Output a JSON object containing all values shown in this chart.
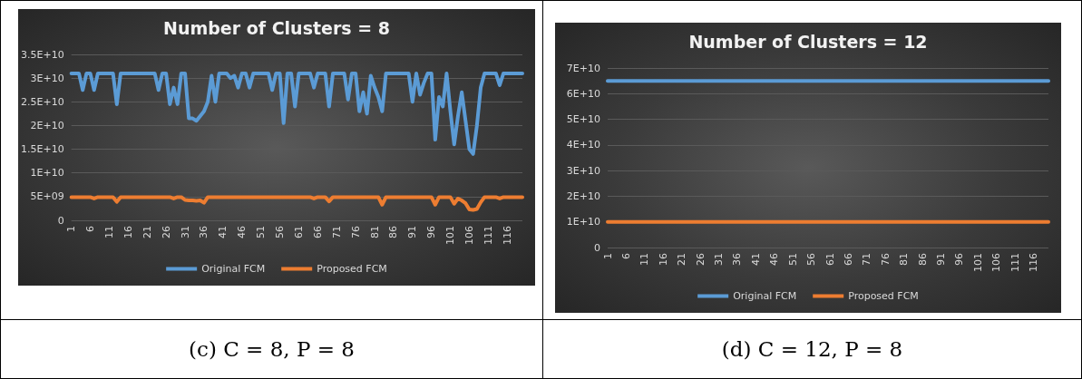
{
  "chart_data": [
    {
      "type": "line",
      "title": "Number of Clusters = 8",
      "categories": [
        "1",
        null,
        null,
        null,
        null,
        "6",
        null,
        null,
        null,
        null,
        "11",
        null,
        null,
        null,
        null,
        "16",
        null,
        null,
        null,
        null,
        "21",
        null,
        null,
        null,
        null,
        "26",
        null,
        null,
        null,
        null,
        "31",
        null,
        null,
        null,
        null,
        "36",
        null,
        null,
        null,
        null,
        "41",
        null,
        null,
        null,
        null,
        "46",
        null,
        null,
        null,
        null,
        "51",
        null,
        null,
        null,
        null,
        "56",
        null,
        null,
        null,
        null,
        "61",
        null,
        null,
        null,
        null,
        "66",
        null,
        null,
        null,
        null,
        "71",
        null,
        null,
        null,
        null,
        "76",
        null,
        null,
        null,
        null,
        "81",
        null,
        null,
        null,
        null,
        "86",
        null,
        null,
        null,
        null,
        "91",
        null,
        null,
        null,
        null,
        "96",
        null,
        null,
        null,
        null,
        "101",
        null,
        null,
        null,
        null,
        "106",
        null,
        null,
        null,
        null,
        "111",
        null,
        null,
        null,
        null,
        "116",
        null,
        null,
        null,
        null
      ],
      "series": [
        {
          "name": "Original FCM",
          "color": "#5b9bd5",
          "values": [
            31000000000.0,
            31000000000.0,
            31000000000.0,
            27500000000.0,
            31000000000.0,
            31000000000.0,
            27500000000.0,
            31000000000.0,
            31000000000.0,
            31000000000.0,
            31000000000.0,
            31000000000.0,
            24500000000.0,
            31000000000.0,
            31000000000.0,
            31000000000.0,
            31000000000.0,
            31000000000.0,
            31000000000.0,
            31000000000.0,
            31000000000.0,
            31000000000.0,
            31000000000.0,
            27500000000.0,
            31000000000.0,
            31000000000.0,
            24500000000.0,
            28000000000.0,
            24500000000.0,
            31000000000.0,
            31000000000.0,
            21500000000.0,
            21500000000.0,
            21000000000.0,
            22000000000.0,
            23000000000.0,
            25000000000.0,
            30500000000.0,
            25000000000.0,
            31000000000.0,
            31000000000.0,
            31000000000.0,
            30000000000.0,
            30500000000.0,
            28000000000.0,
            31000000000.0,
            31000000000.0,
            28000000000.0,
            31000000000.0,
            31000000000.0,
            31000000000.0,
            31000000000.0,
            31000000000.0,
            27500000000.0,
            31000000000.0,
            31000000000.0,
            20500000000.0,
            31000000000.0,
            31000000000.0,
            24000000000.0,
            31000000000.0,
            31000000000.0,
            31000000000.0,
            31000000000.0,
            28000000000.0,
            31000000000.0,
            31000000000.0,
            31000000000.0,
            24000000000.0,
            31000000000.0,
            31000000000.0,
            31000000000.0,
            31000000000.0,
            25500000000.0,
            31000000000.0,
            31000000000.0,
            23000000000.0,
            27000000000.0,
            22500000000.0,
            30500000000.0,
            28000000000.0,
            26000000000.0,
            23000000000.0,
            31000000000.0,
            31000000000.0,
            31000000000.0,
            31000000000.0,
            31000000000.0,
            31000000000.0,
            31000000000.0,
            25000000000.0,
            31000000000.0,
            26500000000.0,
            29000000000.0,
            31000000000.0,
            31000000000.0,
            17000000000.0,
            26000000000.0,
            24000000000.0,
            31000000000.0,
            23000000000.0,
            16000000000.0,
            22000000000.0,
            27000000000.0,
            21000000000.0,
            15000000000.0,
            14000000000.0,
            20000000000.0,
            28000000000.0,
            31000000000.0,
            31000000000.0,
            31000000000.0,
            31000000000.0,
            28500000000.0,
            31000000000.0,
            31000000000.0,
            31000000000.0,
            31000000000.0,
            31000000000.0,
            31000000000.0
          ]
        },
        {
          "name": "Proposed FCM",
          "color": "#ed7d31",
          "values": [
            4900000000.0,
            4900000000.0,
            4900000000.0,
            4900000000.0,
            4900000000.0,
            4900000000.0,
            4600000000.0,
            4900000000.0,
            4900000000.0,
            4900000000.0,
            4900000000.0,
            4900000000.0,
            3900000000.0,
            4900000000.0,
            4900000000.0,
            4900000000.0,
            4900000000.0,
            4900000000.0,
            4900000000.0,
            4900000000.0,
            4900000000.0,
            4900000000.0,
            4900000000.0,
            4900000000.0,
            4900000000.0,
            4900000000.0,
            4900000000.0,
            4600000000.0,
            4900000000.0,
            4900000000.0,
            4300000000.0,
            4200000000.0,
            4200000000.0,
            4100000000.0,
            4200000000.0,
            3700000000.0,
            4900000000.0,
            4900000000.0,
            4900000000.0,
            4900000000.0,
            4900000000.0,
            4900000000.0,
            4900000000.0,
            4900000000.0,
            4900000000.0,
            4900000000.0,
            4900000000.0,
            4900000000.0,
            4900000000.0,
            4900000000.0,
            4900000000.0,
            4900000000.0,
            4900000000.0,
            4900000000.0,
            4900000000.0,
            4900000000.0,
            4900000000.0,
            4900000000.0,
            4900000000.0,
            4900000000.0,
            4900000000.0,
            4900000000.0,
            4900000000.0,
            4900000000.0,
            4600000000.0,
            4900000000.0,
            4900000000.0,
            4900000000.0,
            4000000000.0,
            4900000000.0,
            4900000000.0,
            4900000000.0,
            4900000000.0,
            4900000000.0,
            4900000000.0,
            4900000000.0,
            4900000000.0,
            4900000000.0,
            4900000000.0,
            4900000000.0,
            4900000000.0,
            4900000000.0,
            3300000000.0,
            4900000000.0,
            4900000000.0,
            4900000000.0,
            4900000000.0,
            4900000000.0,
            4900000000.0,
            4900000000.0,
            4900000000.0,
            4900000000.0,
            4900000000.0,
            4900000000.0,
            4900000000.0,
            4900000000.0,
            3300000000.0,
            4900000000.0,
            4900000000.0,
            4900000000.0,
            4900000000.0,
            3500000000.0,
            4600000000.0,
            4200000000.0,
            3600000000.0,
            2300000000.0,
            2200000000.0,
            2400000000.0,
            3800000000.0,
            4900000000.0,
            4900000000.0,
            4900000000.0,
            4900000000.0,
            4600000000.0,
            4900000000.0,
            4900000000.0,
            4900000000.0,
            4900000000.0,
            4900000000.0,
            4900000000.0
          ]
        }
      ],
      "ylim": [
        0,
        35000000000.0
      ],
      "yticks": [
        0,
        {
          "value": 5000000000.0,
          "label": "5E+09"
        },
        {
          "value": 10000000000.0,
          "label": "1E+10"
        },
        {
          "value": 15000000000.0,
          "label": "1.5E+10"
        },
        {
          "value": 20000000000.0,
          "label": "2E+10"
        },
        {
          "value": 25000000000.0,
          "label": "2.5E+10"
        },
        {
          "value": 30000000000.0,
          "label": "3E+10"
        },
        {
          "value": 35000000000.0,
          "label": "3.5E+10"
        }
      ],
      "grid": "y",
      "legend": "bottom",
      "annotations": [
        "(c) C = 8, P = 8"
      ]
    },
    {
      "type": "line",
      "title": "Number of Clusters = 12",
      "categories": [
        "1",
        null,
        null,
        null,
        null,
        "6",
        null,
        null,
        null,
        null,
        "11",
        null,
        null,
        null,
        null,
        "16",
        null,
        null,
        null,
        null,
        "21",
        null,
        null,
        null,
        null,
        "26",
        null,
        null,
        null,
        null,
        "31",
        null,
        null,
        null,
        null,
        "36",
        null,
        null,
        null,
        null,
        "41",
        null,
        null,
        null,
        null,
        "46",
        null,
        null,
        null,
        null,
        "51",
        null,
        null,
        null,
        null,
        "56",
        null,
        null,
        null,
        null,
        "61",
        null,
        null,
        null,
        null,
        "66",
        null,
        null,
        null,
        null,
        "71",
        null,
        null,
        null,
        null,
        "76",
        null,
        null,
        null,
        null,
        "81",
        null,
        null,
        null,
        null,
        "86",
        null,
        null,
        null,
        null,
        "91",
        null,
        null,
        null,
        null,
        "96",
        null,
        null,
        null,
        null,
        "101",
        null,
        null,
        null,
        null,
        "106",
        null,
        null,
        null,
        null,
        "111",
        null,
        null,
        null,
        null,
        "116",
        null,
        null,
        null,
        null
      ],
      "series": [
        {
          "name": "Original FCM",
          "color": "#5b9bd5",
          "values": [
            65000000000.0,
            65000000000.0,
            65000000000.0,
            65000000000.0,
            65000000000.0,
            65000000000.0,
            65000000000.0,
            65000000000.0,
            65000000000.0,
            65000000000.0,
            65000000000.0,
            65000000000.0,
            65000000000.0,
            65000000000.0,
            65000000000.0,
            65000000000.0,
            65000000000.0,
            65000000000.0,
            65000000000.0,
            65000000000.0,
            65000000000.0,
            65000000000.0,
            65000000000.0,
            65000000000.0,
            65000000000.0,
            65000000000.0,
            65000000000.0,
            65000000000.0,
            65000000000.0,
            65000000000.0,
            65000000000.0,
            65000000000.0,
            65000000000.0,
            65000000000.0,
            65000000000.0,
            65000000000.0,
            65000000000.0,
            65000000000.0,
            65000000000.0,
            65000000000.0,
            65000000000.0,
            65000000000.0,
            65000000000.0,
            65000000000.0,
            65000000000.0,
            65000000000.0,
            65000000000.0,
            65000000000.0,
            65000000000.0,
            65000000000.0,
            65000000000.0,
            65000000000.0,
            65000000000.0,
            65000000000.0,
            65000000000.0,
            65000000000.0,
            65000000000.0,
            65000000000.0,
            65000000000.0,
            65000000000.0,
            65000000000.0,
            65000000000.0,
            65000000000.0,
            65000000000.0,
            65000000000.0,
            65000000000.0,
            65000000000.0,
            65000000000.0,
            65000000000.0,
            65000000000.0,
            65000000000.0,
            65000000000.0,
            65000000000.0,
            65000000000.0,
            65000000000.0,
            65000000000.0,
            65000000000.0,
            65000000000.0,
            65000000000.0,
            65000000000.0,
            65000000000.0,
            65000000000.0,
            65000000000.0,
            65000000000.0,
            65000000000.0,
            65000000000.0,
            65000000000.0,
            65000000000.0,
            65000000000.0,
            65000000000.0,
            65000000000.0,
            65000000000.0,
            65000000000.0,
            65000000000.0,
            65000000000.0,
            65000000000.0,
            65000000000.0,
            65000000000.0,
            65000000000.0,
            65000000000.0,
            65000000000.0,
            65000000000.0,
            65000000000.0,
            65000000000.0,
            65000000000.0,
            65000000000.0,
            65000000000.0,
            65000000000.0,
            65000000000.0,
            65000000000.0,
            65000000000.0,
            65000000000.0,
            65000000000.0,
            65000000000.0,
            65000000000.0,
            65000000000.0,
            65000000000.0,
            65000000000.0,
            65000000000.0,
            65000000000.0
          ]
        },
        {
          "name": "Proposed FCM",
          "color": "#ed7d31",
          "values": [
            10000000000.0,
            10000000000.0,
            10000000000.0,
            10000000000.0,
            10000000000.0,
            10000000000.0,
            10000000000.0,
            10000000000.0,
            10000000000.0,
            10000000000.0,
            10000000000.0,
            10000000000.0,
            10000000000.0,
            10000000000.0,
            10000000000.0,
            10000000000.0,
            10000000000.0,
            10000000000.0,
            10000000000.0,
            10000000000.0,
            10000000000.0,
            10000000000.0,
            10000000000.0,
            10000000000.0,
            10000000000.0,
            10000000000.0,
            10000000000.0,
            10000000000.0,
            10000000000.0,
            10000000000.0,
            10000000000.0,
            10000000000.0,
            10000000000.0,
            10000000000.0,
            10000000000.0,
            10000000000.0,
            10000000000.0,
            10000000000.0,
            10000000000.0,
            10000000000.0,
            10000000000.0,
            10000000000.0,
            10000000000.0,
            10000000000.0,
            10000000000.0,
            10000000000.0,
            10000000000.0,
            10000000000.0,
            10000000000.0,
            10000000000.0,
            10000000000.0,
            10000000000.0,
            10000000000.0,
            10000000000.0,
            10000000000.0,
            10000000000.0,
            10000000000.0,
            10000000000.0,
            10000000000.0,
            10000000000.0,
            10000000000.0,
            10000000000.0,
            10000000000.0,
            10000000000.0,
            10000000000.0,
            10000000000.0,
            10000000000.0,
            10000000000.0,
            10000000000.0,
            10000000000.0,
            10000000000.0,
            10000000000.0,
            10000000000.0,
            10000000000.0,
            10000000000.0,
            10000000000.0,
            10000000000.0,
            10000000000.0,
            10000000000.0,
            10000000000.0,
            10000000000.0,
            10000000000.0,
            10000000000.0,
            10000000000.0,
            10000000000.0,
            10000000000.0,
            10000000000.0,
            10000000000.0,
            10000000000.0,
            10000000000.0,
            10000000000.0,
            10000000000.0,
            10000000000.0,
            10000000000.0,
            10000000000.0,
            10000000000.0,
            10000000000.0,
            10000000000.0,
            10000000000.0,
            10000000000.0,
            10000000000.0,
            10000000000.0,
            10000000000.0,
            10000000000.0,
            10000000000.0,
            10000000000.0,
            10000000000.0,
            10000000000.0,
            10000000000.0,
            10000000000.0,
            10000000000.0,
            10000000000.0,
            10000000000.0,
            10000000000.0,
            10000000000.0,
            10000000000.0,
            10000000000.0,
            10000000000.0,
            10000000000.0,
            10000000000.0
          ]
        }
      ],
      "ylim": [
        0,
        70000000000.0
      ],
      "yticks": [
        0,
        {
          "value": 10000000000.0,
          "label": "1E+10"
        },
        {
          "value": 20000000000.0,
          "label": "2E+10"
        },
        {
          "value": 30000000000.0,
          "label": "3E+10"
        },
        {
          "value": 40000000000.0,
          "label": "4E+10"
        },
        {
          "value": 50000000000.0,
          "label": "5E+10"
        },
        {
          "value": 60000000000.0,
          "label": "6E+10"
        },
        {
          "value": 70000000000.0,
          "label": "7E+10"
        }
      ],
      "grid": "y",
      "legend": "bottom",
      "annotations": [
        "(d) C = 12, P = 8"
      ]
    }
  ]
}
